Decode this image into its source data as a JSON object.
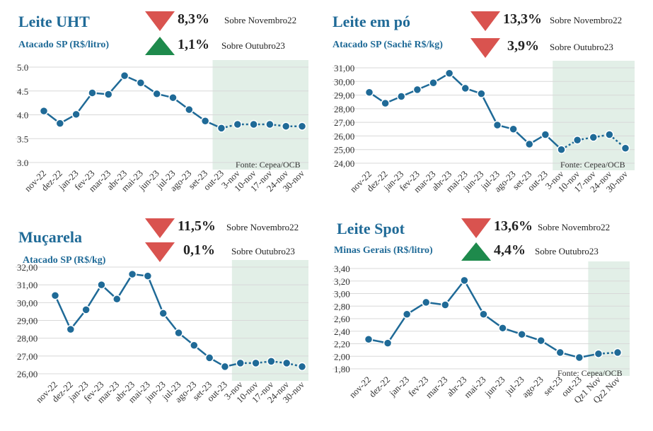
{
  "chart_data": [
    {
      "type": "line",
      "title": "Leite UHT",
      "subtitle": "Atacado SP (R$/litro)",
      "indicators": [
        {
          "direction": "down",
          "value": "8,3%",
          "reference": "Sobre Novembro22"
        },
        {
          "direction": "up",
          "value": "1,1%",
          "reference": "Sobre Outubro23"
        }
      ],
      "categories": [
        "nov-22",
        "dez-22",
        "jan-23",
        "fev-23",
        "mar-23",
        "abr-23",
        "mai-23",
        "jun-23",
        "jul-23",
        "ago-23",
        "set-23",
        "out-23",
        "3-nov",
        "10-nov",
        "17-nov",
        "24-nov",
        "30-nov"
      ],
      "values": [
        4.08,
        3.82,
        4.01,
        4.46,
        4.43,
        4.82,
        4.67,
        4.44,
        4.36,
        4.11,
        3.87,
        3.72,
        3.8,
        3.8,
        3.8,
        3.76,
        3.76
      ],
      "y_ticks": [
        "5.0",
        "4.5",
        "4.0",
        "3.5",
        "3.0"
      ],
      "ylim": [
        3.0,
        5.0
      ],
      "highlight_from_index": 11,
      "source": "Fonte: Cepea/OCB",
      "colors": {
        "line": "#1f6a97",
        "highlight": "#e2efe7",
        "grid": "#d8d8d8"
      }
    },
    {
      "type": "line",
      "title": "Leite em pó",
      "subtitle": "Atacado SP (Sachê R$/kg)",
      "indicators": [
        {
          "direction": "down",
          "value": "13,3%",
          "reference": "Sobre Novembro22"
        },
        {
          "direction": "down",
          "value": "3,9%",
          "reference": "Sobre Outubro23"
        }
      ],
      "categories": [
        "nov-22",
        "dez-22",
        "jan-23",
        "fev-23",
        "mar-23",
        "abr-23",
        "mai-23",
        "jun-23",
        "jul-23",
        "ago-23",
        "set-23",
        "out-23",
        "3-nov",
        "10-nov",
        "17-nov",
        "24-nov",
        "30-nov"
      ],
      "values": [
        29.2,
        28.4,
        28.9,
        29.4,
        29.9,
        30.6,
        29.5,
        29.1,
        26.8,
        26.5,
        25.4,
        26.1,
        25.0,
        25.7,
        25.9,
        26.1,
        25.1
      ],
      "y_ticks": [
        "31,00",
        "30,00",
        "29,00",
        "28,00",
        "27,00",
        "26,00",
        "25,00",
        "24,00"
      ],
      "ylim": [
        24.0,
        31.0
      ],
      "highlight_from_index": 12,
      "source": "Fonte: Cepea/OCB",
      "colors": {
        "line": "#1f6a97",
        "highlight": "#e2efe7",
        "grid": "#d8d8d8"
      }
    },
    {
      "type": "line",
      "title": "Muçarela",
      "subtitle": "Atacado SP (R$/kg)",
      "indicators": [
        {
          "direction": "down",
          "value": "11,5%",
          "reference": "Sobre Novembro22"
        },
        {
          "direction": "down",
          "value": "0,1%",
          "reference": "Sobre Outubro23"
        }
      ],
      "categories": [
        "nov-22",
        "dez-22",
        "jan-23",
        "fev-23",
        "mar-23",
        "abr-23",
        "mai-23",
        "jun-23",
        "jul-23",
        "ago-23",
        "set-23",
        "out-23",
        "3-nov",
        "10-nov",
        "17-nov",
        "24-nov",
        "30-nov"
      ],
      "values": [
        30.4,
        28.5,
        29.6,
        31.0,
        30.2,
        31.6,
        31.5,
        29.4,
        28.3,
        27.6,
        26.9,
        26.4,
        26.6,
        26.6,
        26.7,
        26.6,
        26.4
      ],
      "y_ticks": [
        "32,00",
        "31,00",
        "30,00",
        "29,00",
        "28,00",
        "27,00",
        "26,00"
      ],
      "ylim": [
        26.0,
        32.0
      ],
      "highlight_from_index": 12,
      "source": "",
      "colors": {
        "line": "#1f6a97",
        "highlight": "#e2efe7",
        "grid": "#d8d8d8"
      }
    },
    {
      "type": "line",
      "title": "Leite Spot",
      "subtitle": "Minas Gerais (R$/litro)",
      "indicators": [
        {
          "direction": "down",
          "value": "13,6%",
          "reference": "Sobre Novembro22"
        },
        {
          "direction": "up",
          "value": "4,4%",
          "reference": "Sobre Outubro23"
        }
      ],
      "categories": [
        "nov-22",
        "dez-22",
        "jan-23",
        "fev-23",
        "mar-23",
        "abr-23",
        "mai-23",
        "jun-23",
        "jul-23",
        "ago-23",
        "set-23",
        "out-23",
        "Qz1 Nov",
        "Qz2 Nov"
      ],
      "values": [
        2.27,
        2.21,
        2.67,
        2.86,
        2.82,
        3.21,
        2.67,
        2.45,
        2.35,
        2.25,
        2.06,
        1.98,
        2.04,
        2.06
      ],
      "y_ticks": [
        "3,40",
        "3,20",
        "3,00",
        "2,80",
        "2,60",
        "2,40",
        "2,20",
        "2,00",
        "1,80"
      ],
      "ylim": [
        1.8,
        3.4
      ],
      "highlight_from_index": 12,
      "source": "Fonte: Cepea/OCB",
      "colors": {
        "line": "#1f6a97",
        "highlight": "#e2efe7",
        "grid": "#d8d8d8"
      }
    }
  ]
}
